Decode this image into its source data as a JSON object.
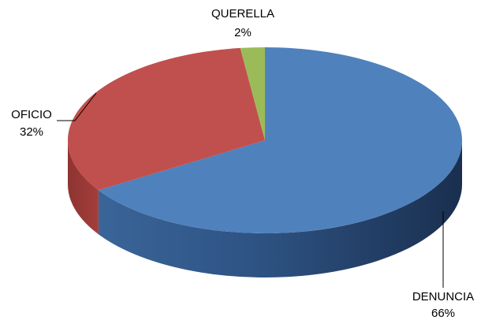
{
  "chart_data": {
    "type": "pie",
    "style": "3d",
    "title": "",
    "legend": "none",
    "slices": [
      {
        "label": "DENUNCIA",
        "value": 66,
        "pct_label": "66%",
        "color": "#4f81bd"
      },
      {
        "label": "OFICIO",
        "value": 32,
        "pct_label": "32%",
        "color": "#c0504d"
      },
      {
        "label": "QUERELLA",
        "value": 2,
        "pct_label": "2%",
        "color": "#9bbb59"
      }
    ]
  }
}
